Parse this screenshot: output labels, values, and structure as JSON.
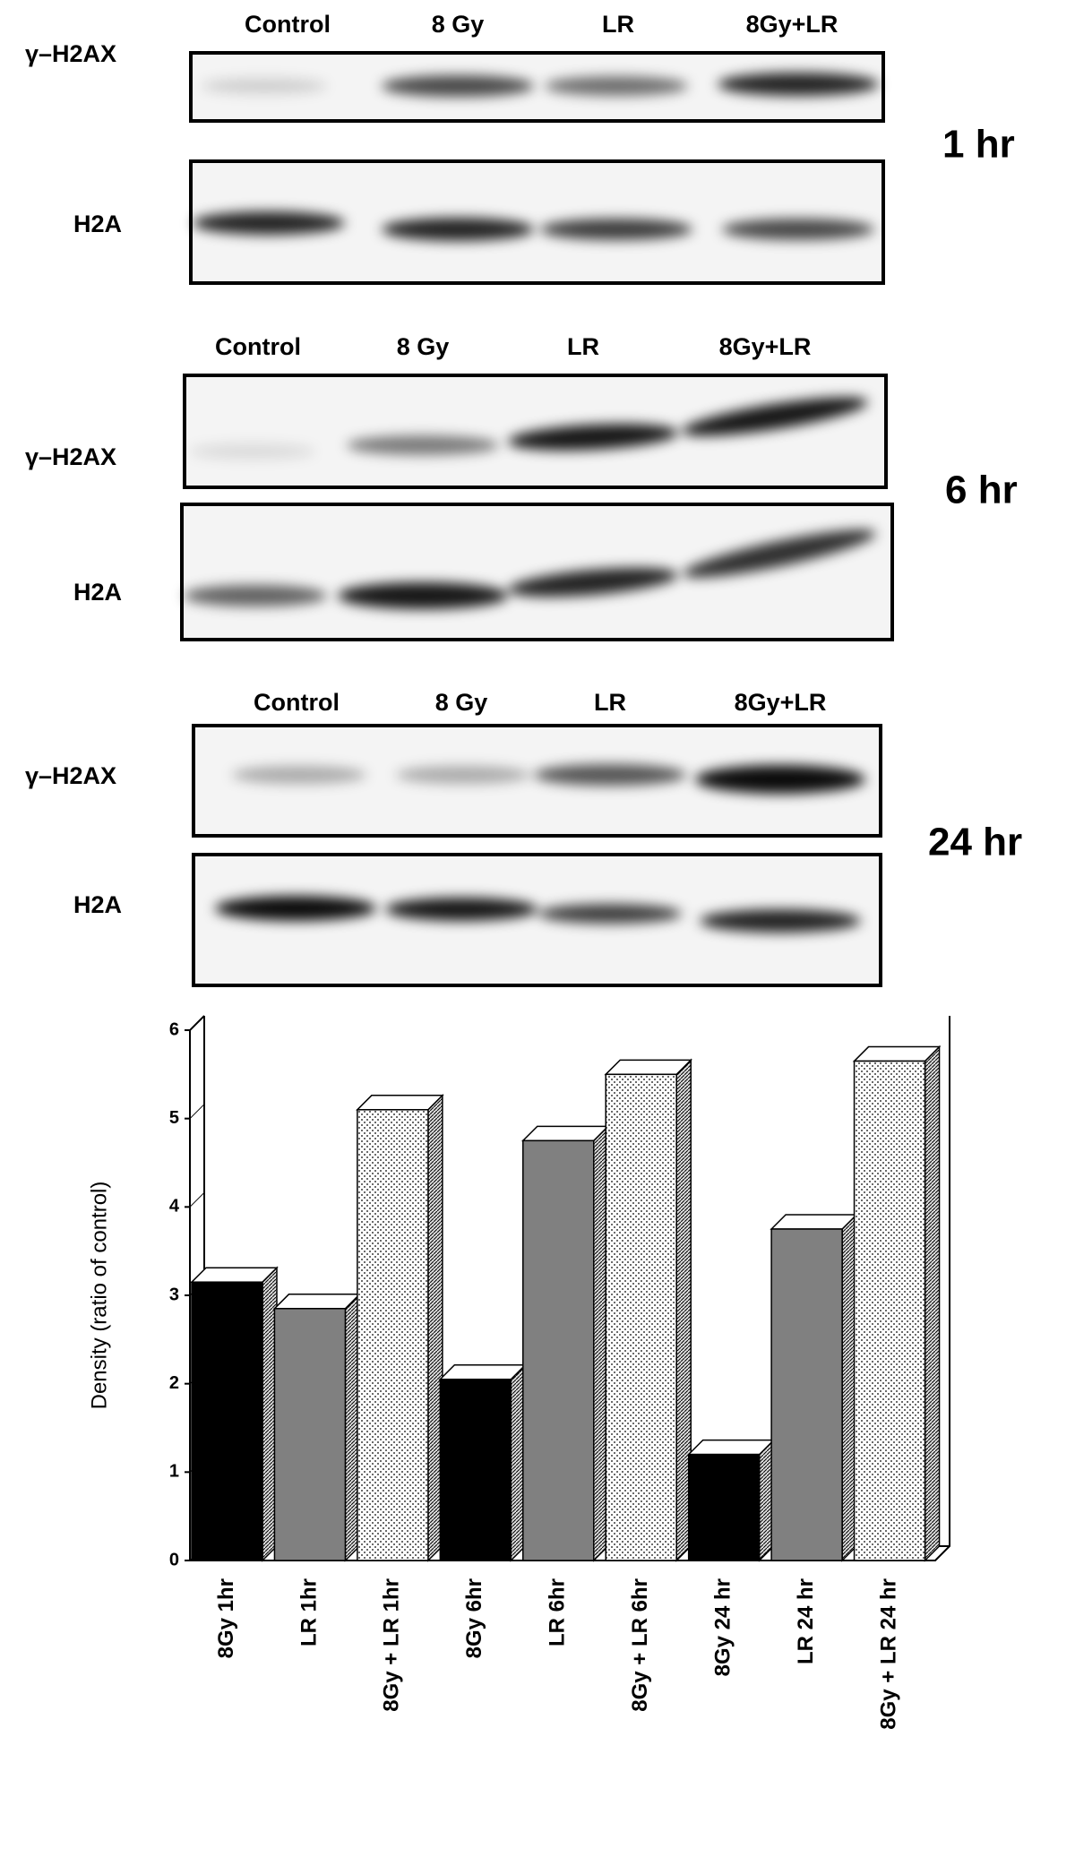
{
  "blots": [
    {
      "lanes": [
        "Control",
        "8 Gy",
        "LR",
        "8Gy+LR"
      ],
      "rows": [
        "γ–H2AX",
        "H2A"
      ],
      "time": "1 hr"
    },
    {
      "lanes": [
        "Control",
        "8 Gy",
        "LR",
        "8Gy+LR"
      ],
      "rows": [
        "γ–H2AX",
        "H2A"
      ],
      "time": "6 hr"
    },
    {
      "lanes": [
        "Control",
        "8 Gy",
        "LR",
        "8Gy+LR"
      ],
      "rows": [
        "γ–H2AX",
        "H2A"
      ],
      "time": "24 hr"
    }
  ],
  "chart_data": {
    "type": "bar3d",
    "y_label": "Density (ratio of control)",
    "categories": [
      "8Gy 1hr",
      "LR 1hr",
      "8Gy + LR 1hr",
      "8Gy 6hr",
      "LR 6hr",
      "8Gy + LR 6hr",
      "8Gy 24 hr",
      "LR 24 hr",
      "8Gy + LR 24 hr"
    ],
    "values": [
      3.15,
      2.85,
      5.1,
      2.05,
      4.75,
      5.5,
      1.2,
      3.75,
      5.65
    ],
    "colors": [
      "#000000",
      "#808080",
      "#ffffff",
      "#000000",
      "#808080",
      "#ffffff",
      "#000000",
      "#808080",
      "#ffffff"
    ],
    "ylim": [
      0,
      6
    ],
    "yticks": [
      0,
      1,
      2,
      3,
      4,
      5,
      6
    ]
  }
}
